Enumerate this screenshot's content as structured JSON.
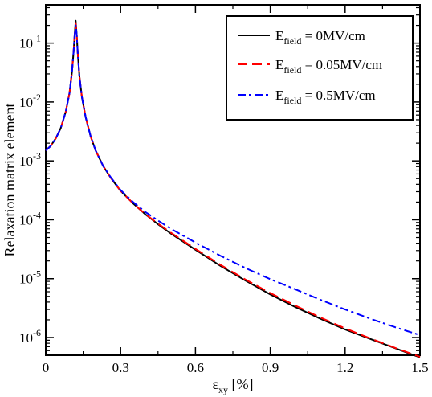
{
  "chart_data": {
    "type": "line",
    "title": "",
    "xlabel": {
      "main": "ε",
      "sub": "xy",
      "unit": " [%]"
    },
    "ylabel": "Relaxation matrix element",
    "xlim": [
      0,
      1.5
    ],
    "ylim_log10": [
      -6.3,
      -0.35
    ],
    "yscale": "log",
    "grid": false,
    "legend_position": "top-right",
    "x_ticks": [
      {
        "value": 0,
        "label": "0"
      },
      {
        "value": 0.3,
        "label": "0.3"
      },
      {
        "value": 0.6,
        "label": "0.6"
      },
      {
        "value": 0.9,
        "label": "0.9"
      },
      {
        "value": 1.2,
        "label": "1.2"
      },
      {
        "value": 1.5,
        "label": "1.5"
      }
    ],
    "y_ticks": [
      {
        "exp": -1,
        "base": "10",
        "sup": "-1"
      },
      {
        "exp": -2,
        "base": "10",
        "sup": "-2"
      },
      {
        "exp": -3,
        "base": "10",
        "sup": "-3"
      },
      {
        "exp": -4,
        "base": "10",
        "sup": "-4"
      },
      {
        "exp": -5,
        "base": "10",
        "sup": "-5"
      },
      {
        "exp": -6,
        "base": "10",
        "sup": "-6"
      }
    ],
    "series": [
      {
        "legend_main": "E",
        "legend_sub": "field",
        "legend_rest": " = 0MV/cm",
        "color": "#000000",
        "dash": "",
        "width": 2,
        "x": [
          0,
          0.02,
          0.04,
          0.06,
          0.08,
          0.095,
          0.105,
          0.112,
          0.116,
          0.12,
          0.124,
          0.128,
          0.135,
          0.145,
          0.16,
          0.18,
          0.2,
          0.23,
          0.26,
          0.3,
          0.35,
          0.4,
          0.45,
          0.5,
          0.6,
          0.7,
          0.8,
          0.9,
          1.0,
          1.1,
          1.2,
          1.3,
          1.4,
          1.5
        ],
        "y": [
          0.0015,
          0.0018,
          0.0024,
          0.0036,
          0.0068,
          0.014,
          0.032,
          0.075,
          0.14,
          0.24,
          0.14,
          0.07,
          0.027,
          0.012,
          0.0055,
          0.0026,
          0.0015,
          0.00082,
          0.00052,
          0.00031,
          0.00019,
          0.000123,
          8.4e-05,
          5.9e-05,
          3.1e-05,
          1.65e-05,
          9.3e-06,
          5.4e-06,
          3.3e-06,
          2.1e-06,
          1.37e-06,
          9.5e-07,
          6.6e-07,
          4.6e-07
        ]
      },
      {
        "legend_main": "E",
        "legend_sub": "field",
        "legend_rest": " = 0.05MV/cm",
        "color": "#ff0000",
        "dash": "12,6",
        "width": 2,
        "x": [
          0,
          0.02,
          0.04,
          0.06,
          0.08,
          0.095,
          0.105,
          0.112,
          0.116,
          0.12,
          0.124,
          0.128,
          0.135,
          0.145,
          0.16,
          0.18,
          0.2,
          0.23,
          0.26,
          0.3,
          0.35,
          0.4,
          0.45,
          0.5,
          0.6,
          0.7,
          0.8,
          0.9,
          1.0,
          1.1,
          1.2,
          1.3,
          1.4,
          1.5
        ],
        "y": [
          0.0015,
          0.0018,
          0.0024,
          0.0036,
          0.0068,
          0.014,
          0.032,
          0.075,
          0.14,
          0.22,
          0.14,
          0.07,
          0.027,
          0.012,
          0.0055,
          0.0026,
          0.0015,
          0.00082,
          0.00052,
          0.00031,
          0.00019,
          0.000124,
          8.6e-05,
          6.1e-05,
          3.2e-05,
          1.72e-05,
          9.7e-06,
          5.7e-06,
          3.5e-06,
          2.2e-06,
          1.43e-06,
          9.7e-07,
          6.7e-07,
          4.7e-07
        ]
      },
      {
        "legend_main": "E",
        "legend_sub": "field",
        "legend_rest": " = 0.5MV/cm",
        "color": "#0000ff",
        "dash": "10,4,3,4",
        "width": 2,
        "x": [
          0,
          0.02,
          0.04,
          0.06,
          0.08,
          0.095,
          0.105,
          0.112,
          0.116,
          0.12,
          0.124,
          0.128,
          0.135,
          0.145,
          0.16,
          0.18,
          0.2,
          0.23,
          0.26,
          0.3,
          0.35,
          0.4,
          0.45,
          0.5,
          0.6,
          0.7,
          0.8,
          0.9,
          1.0,
          1.1,
          1.2,
          1.3,
          1.4,
          1.5
        ],
        "y": [
          0.0015,
          0.0018,
          0.0024,
          0.0036,
          0.0068,
          0.014,
          0.032,
          0.075,
          0.14,
          0.2,
          0.14,
          0.07,
          0.027,
          0.012,
          0.0055,
          0.0026,
          0.0015,
          0.00082,
          0.00053,
          0.00032,
          0.0002,
          0.000135,
          9.7e-05,
          7.1e-05,
          4.1e-05,
          2.45e-05,
          1.52e-05,
          9.8e-06,
          6.6e-06,
          4.4e-06,
          3e-06,
          2.1e-06,
          1.5e-06,
          1.1e-06
        ]
      }
    ]
  }
}
